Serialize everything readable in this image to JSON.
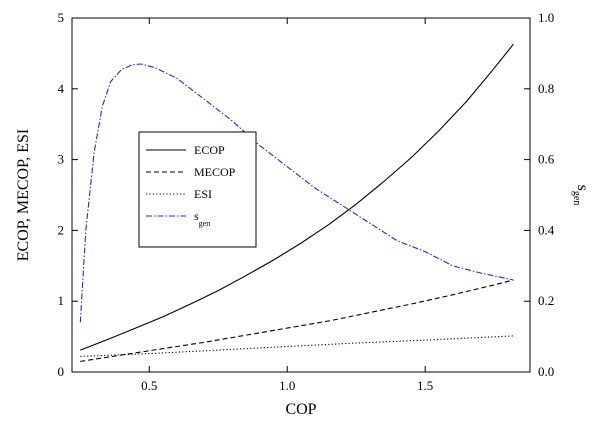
{
  "chart_data": {
    "type": "line",
    "xlabel": "COP",
    "ylabel": "ECOP, MECOP, ESI",
    "y2label": {
      "main": "s",
      "sub": "gen"
    },
    "xlim": [
      0.22,
      1.88
    ],
    "ylim": [
      0,
      5
    ],
    "y2lim": [
      0,
      1.0
    ],
    "xticks": [
      0.5,
      1.0,
      1.5
    ],
    "xtick_labels": [
      "0.5",
      "1.0",
      "1.5"
    ],
    "yticks": [
      0,
      1,
      2,
      3,
      4,
      5
    ],
    "ytick_labels": [
      "0",
      "1",
      "2",
      "3",
      "4",
      "5"
    ],
    "y2ticks": [
      0,
      0.2,
      0.4,
      0.6,
      0.8,
      1.0
    ],
    "y2tick_labels": [
      "0.0",
      "0.2",
      "0.4",
      "0.6",
      "0.8",
      "1.0"
    ],
    "legend_position": "center-left",
    "series": [
      {
        "name": "ECOP",
        "axis": "left",
        "style": "solid",
        "color": "#000000",
        "x": [
          0.25,
          0.35,
          0.45,
          0.55,
          0.65,
          0.75,
          0.85,
          0.95,
          1.05,
          1.15,
          1.25,
          1.35,
          1.45,
          1.55,
          1.65,
          1.75,
          1.82
        ],
        "y": [
          0.31,
          0.46,
          0.62,
          0.78,
          0.96,
          1.15,
          1.36,
          1.58,
          1.82,
          2.08,
          2.37,
          2.69,
          3.03,
          3.41,
          3.82,
          4.29,
          4.63
        ]
      },
      {
        "name": "MECOP",
        "axis": "left",
        "style": "dashed",
        "color": "#000000",
        "x": [
          0.25,
          0.4,
          0.55,
          0.7,
          0.85,
          1.0,
          1.15,
          1.3,
          1.45,
          1.6,
          1.75,
          1.82
        ],
        "y": [
          0.15,
          0.24,
          0.33,
          0.42,
          0.52,
          0.62,
          0.72,
          0.84,
          0.96,
          1.09,
          1.23,
          1.3
        ]
      },
      {
        "name": "ESI",
        "axis": "left",
        "style": "dotted",
        "color": "#000000",
        "x": [
          0.25,
          0.5,
          0.75,
          1.0,
          1.25,
          1.5,
          1.82
        ],
        "y": [
          0.22,
          0.26,
          0.31,
          0.36,
          0.41,
          0.45,
          0.51
        ]
      },
      {
        "name": "s_gen",
        "legend_main": "s",
        "legend_sub": "gen",
        "axis": "right",
        "style": "dashdot",
        "color": "#1f2fd0",
        "x": [
          0.25,
          0.27,
          0.3,
          0.33,
          0.36,
          0.4,
          0.44,
          0.47,
          0.52,
          0.6,
          0.7,
          0.8,
          0.9,
          1.0,
          1.1,
          1.2,
          1.3,
          1.4,
          1.5,
          1.6,
          1.7,
          1.82
        ],
        "y": [
          0.14,
          0.4,
          0.62,
          0.75,
          0.82,
          0.855,
          0.868,
          0.87,
          0.86,
          0.83,
          0.77,
          0.71,
          0.64,
          0.58,
          0.52,
          0.47,
          0.42,
          0.37,
          0.34,
          0.3,
          0.28,
          0.26
        ]
      }
    ]
  }
}
